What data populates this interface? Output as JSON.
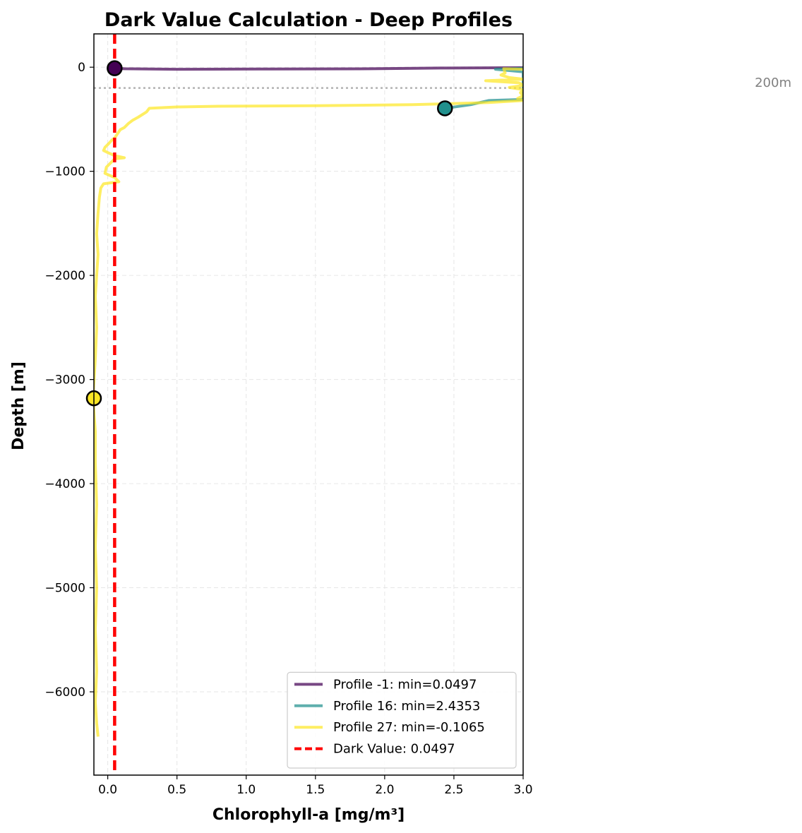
{
  "chart_data": {
    "type": "line",
    "title": "Dark Value Calculation - Deep Profiles",
    "xlabel": "Chlorophyll-a [mg/m³]",
    "ylabel": "Depth [m]",
    "xlim": [
      -0.1,
      3.0
    ],
    "ylim": [
      -6800,
      320
    ],
    "x_ticks": [
      0.0,
      0.5,
      1.0,
      1.5,
      2.0,
      2.5,
      3.0
    ],
    "x_tick_labels": [
      "0.0",
      "0.5",
      "1.0",
      "1.5",
      "2.0",
      "2.5",
      "3.0"
    ],
    "y_ticks": [
      0,
      -1000,
      -2000,
      -3000,
      -4000,
      -5000,
      -6000
    ],
    "y_tick_labels": [
      "0",
      "−1000",
      "−2000",
      "−3000",
      "−4000",
      "−5000",
      "−6000"
    ],
    "grid": true,
    "legend_position": "lower-right",
    "reference_line": {
      "depth": -200,
      "label": "200m",
      "color": "#b3b3b3"
    },
    "dark_value": {
      "value": 0.0497,
      "label": "Dark Value: 0.0497",
      "color": "#ff0000"
    },
    "series": [
      {
        "name": "Profile -1: min=0.0497",
        "color": "#440154",
        "points": [
          [
            3.0,
            -5
          ],
          [
            2.4,
            -8
          ],
          [
            1.9,
            -15
          ],
          [
            1.1,
            -18
          ],
          [
            0.5,
            -20
          ],
          [
            0.12,
            -15
          ],
          [
            0.0497,
            -10
          ]
        ],
        "min_marker": {
          "x": 0.0497,
          "y": -10
        }
      },
      {
        "name": "Profile 16: min=2.4353",
        "color": "#21908d",
        "points": [
          [
            3.0,
            -10
          ],
          [
            2.8,
            -20
          ],
          [
            3.0,
            -45
          ],
          [
            3.0,
            -80
          ],
          [
            3.0,
            -310
          ],
          [
            2.75,
            -320
          ],
          [
            2.62,
            -360
          ],
          [
            2.4353,
            -395
          ]
        ],
        "min_marker": {
          "x": 2.4353,
          "y": -395
        }
      },
      {
        "name": "Profile 27: min=-0.1065",
        "color": "#fde725",
        "points": [
          [
            3.0,
            -20
          ],
          [
            2.86,
            -15
          ],
          [
            2.87,
            -55
          ],
          [
            2.84,
            -75
          ],
          [
            2.9,
            -100
          ],
          [
            3.0,
            -115
          ],
          [
            2.73,
            -130
          ],
          [
            2.97,
            -150
          ],
          [
            3.0,
            -175
          ],
          [
            2.9,
            -195
          ],
          [
            3.0,
            -215
          ],
          [
            2.98,
            -245
          ],
          [
            3.0,
            -275
          ],
          [
            2.96,
            -300
          ],
          [
            3.0,
            -320
          ],
          [
            2.75,
            -340
          ],
          [
            2.2,
            -360
          ],
          [
            1.5,
            -370
          ],
          [
            0.8,
            -375
          ],
          [
            0.5,
            -382
          ],
          [
            0.3,
            -395
          ],
          [
            0.28,
            -430
          ],
          [
            0.22,
            -480
          ],
          [
            0.18,
            -510
          ],
          [
            0.15,
            -540
          ],
          [
            0.12,
            -580
          ],
          [
            0.09,
            -600
          ],
          [
            0.07,
            -640
          ],
          [
            0.05,
            -680
          ],
          [
            0.03,
            -700
          ],
          [
            0.01,
            -730
          ],
          [
            -0.02,
            -770
          ],
          [
            -0.03,
            -800
          ],
          [
            0.0,
            -820
          ],
          [
            0.05,
            -850
          ],
          [
            0.12,
            -870
          ],
          [
            0.05,
            -880
          ],
          [
            -0.01,
            -960
          ],
          [
            -0.02,
            -1020
          ],
          [
            0.05,
            -1060
          ],
          [
            0.08,
            -1100
          ],
          [
            -0.03,
            -1120
          ],
          [
            -0.05,
            -1160
          ],
          [
            -0.06,
            -1250
          ],
          [
            -0.07,
            -1400
          ],
          [
            -0.08,
            -1600
          ],
          [
            -0.07,
            -1800
          ],
          [
            -0.08,
            -2000
          ],
          [
            -0.09,
            -2200
          ],
          [
            -0.08,
            -2500
          ],
          [
            -0.09,
            -2800
          ],
          [
            -0.1065,
            -3180
          ],
          [
            -0.09,
            -3500
          ],
          [
            -0.09,
            -3800
          ],
          [
            -0.08,
            -4200
          ],
          [
            -0.09,
            -4600
          ],
          [
            -0.08,
            -5000
          ],
          [
            -0.09,
            -5400
          ],
          [
            -0.08,
            -5800
          ],
          [
            -0.09,
            -6100
          ],
          [
            -0.08,
            -6300
          ],
          [
            -0.07,
            -6430
          ]
        ],
        "min_marker": {
          "x": -0.1065,
          "y": -3180
        }
      }
    ]
  }
}
